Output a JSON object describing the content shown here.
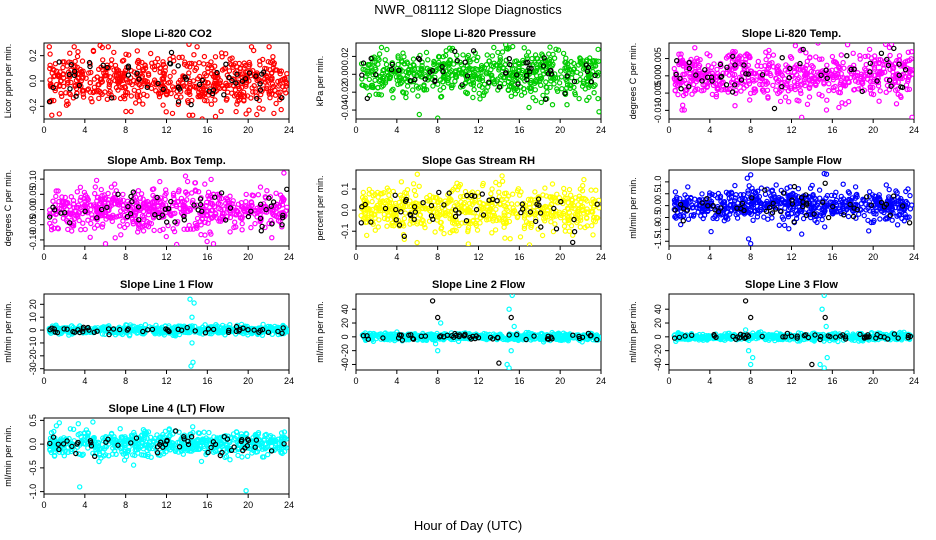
{
  "figure": {
    "title": "NWR_081112  Slope Diagnostics",
    "xlabel": "Hour of Day (UTC)"
  },
  "chart_data": [
    {
      "type": "scatter",
      "title": "Slope Li-820 CO2",
      "ylabel": "Licor ppm per min.",
      "xlim": [
        0,
        24
      ],
      "ylim": [
        -0.3,
        0.3
      ],
      "xticks": [
        0,
        4,
        8,
        12,
        16,
        20,
        24
      ],
      "yticks": [
        -0.2,
        0.0,
        0.2
      ],
      "ytick_labels": [
        "-0.2",
        "0.0",
        "0.2"
      ],
      "color": "#ff0000",
      "spread": 0.1,
      "n": 620,
      "black_n": 55,
      "outliers": [
        [
          5.5,
          0.28
        ],
        [
          6.3,
          0.27
        ],
        [
          14.2,
          0.29
        ],
        [
          15.0,
          0.27
        ],
        [
          16.8,
          -0.28
        ],
        [
          15.5,
          -0.3
        ],
        [
          1.5,
          -0.26
        ],
        [
          19.8,
          -0.26
        ]
      ]
    },
    {
      "type": "scatter",
      "title": "Slope Li-820 Pressure",
      "ylabel": "kPa per min.",
      "xlim": [
        0,
        24
      ],
      "ylim": [
        -0.05,
        0.035
      ],
      "xticks": [
        0,
        4,
        8,
        12,
        16,
        20,
        24
      ],
      "yticks": [
        -0.04,
        -0.02,
        0.0,
        0.02
      ],
      "ytick_labels": [
        "-0.04",
        "-0.02",
        "0.00",
        "0.02"
      ],
      "color": "#00cc00",
      "spread": 0.013,
      "n": 620,
      "black_n": 55,
      "outliers": [
        [
          6.2,
          -0.045
        ],
        [
          8.0,
          -0.049
        ],
        [
          13.5,
          0.03
        ],
        [
          2.5,
          0.03
        ],
        [
          23.8,
          -0.042
        ]
      ]
    },
    {
      "type": "scatter",
      "title": "Slope Li-820 Temp.",
      "ylabel": "degrees C per min.",
      "xlim": [
        0,
        24
      ],
      "ylim": [
        -0.0125,
        0.0095
      ],
      "xticks": [
        0,
        4,
        8,
        12,
        16,
        20,
        24
      ],
      "yticks": [
        -0.01,
        -0.005,
        0.0,
        0.005
      ],
      "ytick_labels": [
        "-0.010",
        "-0.005",
        "0.000",
        "0.005"
      ],
      "color": "#ff00ff",
      "spread": 0.0035,
      "n": 620,
      "black_n": 55,
      "outliers": [
        [
          17.5,
          0.009
        ],
        [
          21.8,
          0.009
        ],
        [
          13.0,
          -0.012
        ],
        [
          23.8,
          -0.012
        ]
      ]
    },
    {
      "type": "scatter",
      "title": "Slope Amb. Box Temp.",
      "ylabel": "degrees C per min.",
      "xlim": [
        0,
        24
      ],
      "ylim": [
        -0.12,
        0.13
      ],
      "xticks": [
        0,
        4,
        8,
        12,
        16,
        20,
        24
      ],
      "yticks": [
        -0.1,
        -0.05,
        0.0,
        0.05,
        0.1
      ],
      "ytick_labels": [
        "-0.10",
        "-0.05",
        "0.00",
        "0.05",
        "0.10"
      ],
      "color": "#ff00ff",
      "spread": 0.035,
      "n": 620,
      "black_n": 55,
      "outliers": [
        [
          13.0,
          -0.115
        ],
        [
          23.5,
          0.12
        ]
      ]
    },
    {
      "type": "scatter",
      "title": "Slope Gas Stream RH",
      "ylabel": "percent per min.",
      "xlim": [
        0,
        24
      ],
      "ylim": [
        -0.17,
        0.19
      ],
      "xticks": [
        0,
        4,
        8,
        12,
        16,
        20,
        24
      ],
      "yticks": [
        -0.1,
        0.0,
        0.1
      ],
      "ytick_labels": [
        "-0.1",
        "0.0",
        "0.1"
      ],
      "color": "#ffff00",
      "spread": 0.055,
      "n": 620,
      "black_n": 55,
      "outliers": [
        [
          6.0,
          0.17
        ],
        [
          17.0,
          -0.165
        ],
        [
          11.0,
          -0.16
        ]
      ]
    },
    {
      "type": "scatter",
      "title": "Slope Sample Flow",
      "ylabel": "ml/min per min.",
      "xlim": [
        0,
        24
      ],
      "ylim": [
        -1.7,
        1.5
      ],
      "xticks": [
        0,
        4,
        8,
        12,
        16,
        20,
        24
      ],
      "yticks": [
        -1.5,
        -1.0,
        -0.5,
        0.0,
        0.5,
        1.0
      ],
      "ytick_labels": [
        "-1.5",
        "-1.0",
        "-0.5",
        "0.0",
        "0.5",
        "1.0"
      ],
      "color": "#0000ff",
      "spread": 0.35,
      "n": 620,
      "black_n": 55,
      "outliers": [
        [
          8.0,
          1.3
        ],
        [
          8.0,
          -1.6
        ],
        [
          7.8,
          -1.4
        ],
        [
          15.2,
          1.35
        ],
        [
          13.0,
          -1.2
        ]
      ]
    },
    {
      "type": "scatter",
      "title": "Slope Line 1 Flow",
      "ylabel": "ml/min per min.",
      "xlim": [
        0,
        24
      ],
      "ylim": [
        -31,
        28
      ],
      "xticks": [
        0,
        4,
        8,
        12,
        16,
        20,
        24
      ],
      "yticks": [
        -30,
        -20,
        -10,
        0,
        10,
        20
      ],
      "ytick_labels": [
        "-30",
        "-20",
        "-10",
        "0",
        "10",
        "20"
      ],
      "color": "#00ffff",
      "spread": 1.6,
      "n": 620,
      "black_n": 55,
      "outliers": [
        [
          14.3,
          24
        ],
        [
          14.7,
          21
        ],
        [
          14.5,
          10
        ],
        [
          14.5,
          -10
        ],
        [
          14.4,
          -28
        ],
        [
          14.6,
          -25
        ]
      ]
    },
    {
      "type": "scatter",
      "title": "Slope Line 2 Flow",
      "ylabel": "ml/min per min.",
      "xlim": [
        0,
        24
      ],
      "ylim": [
        -48,
        62
      ],
      "xticks": [
        0,
        4,
        8,
        12,
        16,
        20,
        24
      ],
      "yticks": [
        -40,
        -20,
        0,
        20,
        40
      ],
      "ytick_labels": [
        "-40",
        "-20",
        "0",
        "20",
        "40"
      ],
      "color": "#00ffff",
      "spread": 2.5,
      "n": 620,
      "black_n": 55,
      "outliers": [
        [
          7.8,
          -10
        ],
        [
          8.0,
          -20
        ],
        [
          8.3,
          20
        ],
        [
          15.3,
          60
        ],
        [
          15.0,
          40
        ],
        [
          14.8,
          -40
        ],
        [
          15.0,
          -45
        ],
        [
          15.2,
          -20
        ],
        [
          15.5,
          15
        ]
      ],
      "black_outliers": [
        [
          7.5,
          52
        ],
        [
          8.0,
          28
        ],
        [
          15.2,
          28
        ],
        [
          14.0,
          -38
        ]
      ]
    },
    {
      "type": "scatter",
      "title": "Slope Line 3 Flow",
      "ylabel": "ml/min per min.",
      "xlim": [
        0,
        24
      ],
      "ylim": [
        -48,
        62
      ],
      "xticks": [
        0,
        4,
        8,
        12,
        16,
        20,
        24
      ],
      "yticks": [
        -40,
        -20,
        0,
        20,
        40
      ],
      "ytick_labels": [
        "-40",
        "-20",
        "0",
        "20",
        "40"
      ],
      "color": "#00ffff",
      "spread": 2.5,
      "n": 620,
      "black_n": 55,
      "outliers": [
        [
          7.5,
          10
        ],
        [
          7.8,
          -20
        ],
        [
          8.0,
          -40
        ],
        [
          8.2,
          -30
        ],
        [
          15.2,
          60
        ],
        [
          15.0,
          40
        ],
        [
          14.8,
          -40
        ],
        [
          15.2,
          -45
        ],
        [
          15.5,
          -30
        ],
        [
          15.4,
          15
        ]
      ],
      "black_outliers": [
        [
          7.5,
          52
        ],
        [
          8.0,
          28
        ],
        [
          15.3,
          28
        ],
        [
          14.0,
          -40
        ]
      ]
    },
    {
      "type": "scatter",
      "title": "Slope Line 4 (LT) Flow",
      "ylabel": "ml/min per min.",
      "xlim": [
        0,
        24
      ],
      "ylim": [
        -1.05,
        0.55
      ],
      "xticks": [
        0,
        4,
        8,
        12,
        16,
        20,
        24
      ],
      "yticks": [
        -1.0,
        -0.5,
        0.0,
        0.5
      ],
      "ytick_labels": [
        "-1.0",
        "-0.5",
        "0.0",
        "0.5"
      ],
      "color": "#00ffff",
      "spread": 0.13,
      "n": 620,
      "black_n": 55,
      "outliers": [
        [
          3.5,
          -0.9
        ],
        [
          19.8,
          -0.98
        ],
        [
          1.5,
          0.45
        ]
      ]
    }
  ]
}
